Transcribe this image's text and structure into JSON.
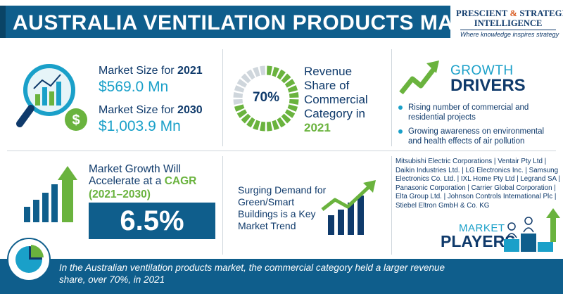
{
  "header": {
    "title": "AUSTRALIA VENTILATION PRODUCTS MARKET",
    "logo": {
      "line1_a": "PRESCIENT",
      "line1_amp": "&",
      "line1_b": "STRATEGIC",
      "line2": "INTELLIGENCE",
      "tagline": "Where knowledge inspires strategy"
    }
  },
  "market_size": {
    "label_2021_prefix": "Market Size for",
    "label_2021_year": "2021",
    "value_2021": "$569.0 Mn",
    "label_2030_prefix": "Market Size for",
    "label_2030_year": "2030",
    "value_2030": "$1,003.9 Mn"
  },
  "revenue_share": {
    "percent_label": "70%",
    "percent_value": 0.7,
    "text": "Revenue Share of Commercial Category in",
    "year": "2021"
  },
  "growth_drivers": {
    "title_top": "GROWTH",
    "title_bottom": "DRIVERS",
    "items": [
      "Rising number of commercial and residential projects",
      "Growing awareness on environmental and health effects of air pollution"
    ]
  },
  "cagr": {
    "text_a": "Market Growth Will Accelerate at a",
    "text_hl": "CAGR",
    "years": "(2021–2030)",
    "value": "6.5%"
  },
  "trend": {
    "text": "Surging Demand for Green/Smart Buildings is a Key Market Trend"
  },
  "players": {
    "list_text": "Mitsubishi Electric Corporations | Ventair Pty Ltd | Daikin Industries Ltd. | LG Electronics Inc. | Samsung Electronics Co. Ltd. | IXL Home Pty Ltd | Legrand SA | Panasonic Corporation | Carrier Global Corporation | Elta Group Ltd. | Johnson Controls International Plc | Stiebel Eltron GmbH & Co. KG",
    "title_top": "MARKET",
    "title_bottom": "PLAYERS"
  },
  "footer": {
    "text": "In the Australian ventilation products market, the commercial category held a larger revenue share, over 70%, in 2021"
  },
  "colors": {
    "navy": "#0f3a6b",
    "blue": "#0f5e8c",
    "cyan": "#1aa0c9",
    "green": "#6ab33e",
    "orange": "#d85a1f"
  }
}
